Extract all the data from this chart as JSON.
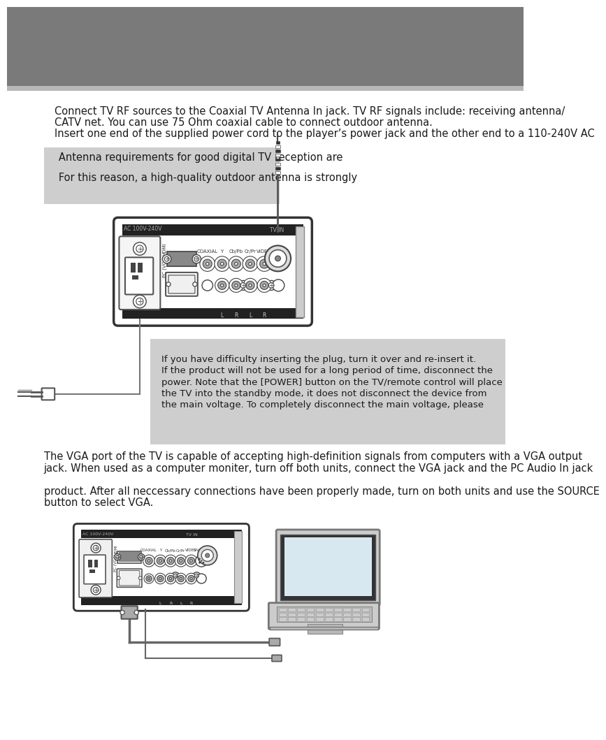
{
  "bg_top_color": "#7a7a7a",
  "bg_stripe_color": "#b8b8b8",
  "page_bg": "#ffffff",
  "text_color": "#1a1a1a",
  "gray_box_color": "#cecece",
  "para1_line1": "Connect TV RF sources to the Coaxial TV Antenna In jack. TV RF signals include: receiving antenna/",
  "para1_line2": "CATV net. You can use 75 Ohm coaxial cable to connect outdoor antenna.",
  "para1_line3": "Insert one end of the supplied power cord to the player’s power jack and the other end to a 110-240V AC",
  "box1_line1": "   Antenna requirements for good digital TV reception are",
  "box1_line2": "   For this reason, a high-quality outdoor antenna is strongly",
  "note_line1": "If you have difficulty inserting the plug, turn it over and re-insert it.",
  "note_line2": "If the product will not be used for a long period of time, disconnect the",
  "note_line3": "power. Note that the [POWER] button on the TV/remote control will place",
  "note_line4": "the TV into the standby mode, it does not disconnect the device from",
  "note_line5": "the main voltage. To completely disconnect the main voltage, please",
  "para2_line1": "The VGA port of the TV is capable of accepting high-definition signals from computers with a VGA output",
  "para2_line2": "jack. When used as a computer moniter, turn off both units, connect the VGA jack and the PC Audio In jack",
  "para3_line1": "product. After all neccessary connections have been properly made, turn on both units and use the SOURCE",
  "para3_line2": "button to select VGA."
}
